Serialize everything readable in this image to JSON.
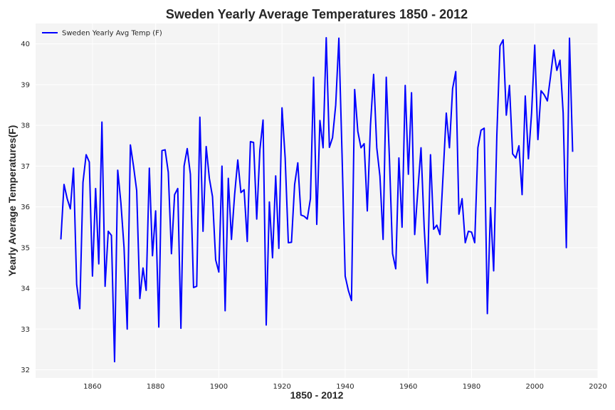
{
  "chart_data": {
    "type": "line",
    "title": "Sweden Yearly Average Temperatures 1850 - 2012",
    "xlabel": "1850 - 2012",
    "ylabel": "Yearly Average Temperatures(F)",
    "xlim": [
      1842,
      2020
    ],
    "ylim": [
      31.8,
      40.5
    ],
    "xticks": [
      1860,
      1880,
      1900,
      1920,
      1940,
      1960,
      1980,
      2000,
      2020
    ],
    "yticks": [
      32,
      33,
      34,
      35,
      36,
      37,
      38,
      39,
      40
    ],
    "grid": true,
    "legend_position": "top-left",
    "colors": {
      "line": "#0000ff",
      "plot_bg": "#f4f4f4",
      "grid": "#ffffff",
      "text": "#262626"
    },
    "series": [
      {
        "name": "Sweden Yearly Avg Temp (F)",
        "x_start": 1850,
        "x_step": 1,
        "values": [
          35.2,
          36.55,
          36.2,
          35.95,
          36.95,
          34.1,
          33.5,
          36.6,
          37.28,
          37.1,
          34.3,
          36.45,
          34.6,
          38.08,
          34.05,
          35.4,
          35.3,
          32.2,
          36.9,
          36.1,
          35.0,
          33.0,
          37.52,
          37.0,
          36.4,
          33.75,
          34.5,
          33.95,
          36.95,
          34.8,
          35.9,
          33.05,
          37.38,
          37.4,
          36.85,
          34.85,
          36.3,
          36.45,
          33.02,
          37.0,
          37.43,
          36.8,
          34.02,
          34.05,
          38.2,
          35.4,
          37.48,
          36.7,
          36.25,
          34.7,
          34.4,
          37.0,
          33.45,
          36.7,
          35.2,
          36.3,
          37.15,
          36.35,
          36.42,
          35.15,
          37.6,
          37.58,
          35.7,
          37.4,
          38.13,
          33.1,
          36.12,
          34.75,
          36.76,
          34.98,
          38.43,
          37.2,
          35.12,
          35.13,
          36.55,
          37.08,
          35.8,
          35.77,
          35.7,
          36.2,
          39.18,
          35.57,
          38.12,
          37.45,
          40.15,
          37.46,
          37.7,
          38.5,
          40.14,
          37.3,
          34.3,
          33.95,
          33.7,
          38.88,
          37.85,
          37.45,
          37.55,
          35.9,
          38.0,
          39.25,
          37.45,
          36.75,
          35.2,
          39.18,
          37.2,
          34.85,
          34.48,
          37.2,
          35.5,
          38.98,
          36.8,
          38.8,
          35.32,
          36.4,
          37.45,
          35.5,
          34.13,
          37.28,
          35.45,
          35.55,
          35.32,
          36.8,
          38.3,
          37.45,
          38.9,
          39.32,
          35.82,
          36.2,
          35.12,
          35.4,
          35.38,
          35.12,
          37.45,
          37.88,
          37.93,
          33.38,
          35.98,
          34.43,
          37.75,
          39.95,
          40.1,
          38.25,
          38.98,
          37.3,
          37.2,
          37.5,
          36.3,
          38.72,
          37.18,
          38.3,
          39.97,
          37.65,
          38.85,
          38.75,
          38.6,
          39.2,
          39.85,
          39.35,
          39.6,
          38.3,
          35.0,
          40.14,
          37.35
        ]
      }
    ]
  }
}
